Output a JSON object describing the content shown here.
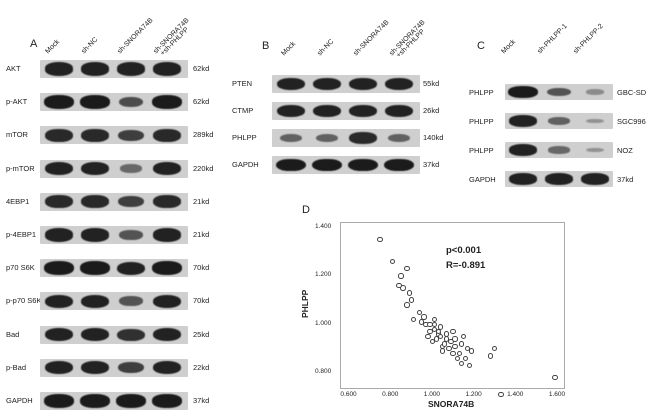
{
  "panel_a": {
    "letter": "A",
    "lanes": [
      "Mock",
      "sh-NC",
      "sh-SNORA74B",
      "sh-SNORA74B\n+sh-PHLPP"
    ],
    "rows": [
      {
        "label": "AKT",
        "kd": "62kd",
        "intensity": [
          0.9,
          0.9,
          0.9,
          0.9
        ]
      },
      {
        "label": "p-AKT",
        "kd": "62kd",
        "intensity": [
          0.95,
          0.95,
          0.6,
          0.95
        ]
      },
      {
        "label": "mTOR",
        "kd": "289kd",
        "intensity": [
          0.85,
          0.85,
          0.7,
          0.85
        ]
      },
      {
        "label": "p-mTOR",
        "kd": "220kd",
        "intensity": [
          0.9,
          0.9,
          0.4,
          0.9
        ]
      },
      {
        "label": "4EBP1",
        "kd": "21kd",
        "intensity": [
          0.85,
          0.85,
          0.7,
          0.85
        ]
      },
      {
        "label": "p-4EBP1",
        "kd": "21kd",
        "intensity": [
          0.9,
          0.9,
          0.55,
          0.9
        ]
      },
      {
        "label": "p70 S6K",
        "kd": "70kd",
        "intensity": [
          0.95,
          0.95,
          0.9,
          0.95
        ]
      },
      {
        "label": "p-p70 S6K",
        "kd": "70kd",
        "intensity": [
          0.9,
          0.9,
          0.55,
          0.9
        ]
      },
      {
        "label": "Bad",
        "kd": "25kd",
        "intensity": [
          0.9,
          0.9,
          0.8,
          0.9
        ]
      },
      {
        "label": "p-Bad",
        "kd": "22kd",
        "intensity": [
          0.9,
          0.9,
          0.7,
          0.9
        ]
      },
      {
        "label": "GAPDH",
        "kd": "37kd",
        "intensity": [
          0.95,
          0.95,
          0.95,
          0.95
        ]
      }
    ]
  },
  "panel_b": {
    "letter": "B",
    "lanes": [
      "Mock",
      "sh-NC",
      "sh-SNORA74B",
      "sh-SNORA74B\n+sh-PHLPP"
    ],
    "rows": [
      {
        "label": "PTEN",
        "kd": "55kd",
        "intensity": [
          0.9,
          0.9,
          0.9,
          0.9
        ]
      },
      {
        "label": "CTMP",
        "kd": "26kd",
        "intensity": [
          0.9,
          0.9,
          0.9,
          0.9
        ]
      },
      {
        "label": "PHLPP",
        "kd": "140kd",
        "intensity": [
          0.45,
          0.45,
          0.85,
          0.45
        ]
      },
      {
        "label": "GAPDH",
        "kd": "37kd",
        "intensity": [
          0.95,
          0.95,
          0.95,
          0.95
        ]
      }
    ]
  },
  "panel_c": {
    "letter": "C",
    "lanes": [
      "Mock",
      "sh-PHLPP-1",
      "sh-PHLPP-2"
    ],
    "rows": [
      {
        "label": "PHLPP",
        "kd": "GBC-SD",
        "intensity": [
          0.95,
          0.55,
          0.15
        ]
      },
      {
        "label": "PHLPP",
        "kd": "SGC996",
        "intensity": [
          0.9,
          0.45,
          0.1
        ]
      },
      {
        "label": "PHLPP",
        "kd": "NOZ",
        "intensity": [
          0.9,
          0.4,
          0.1
        ]
      },
      {
        "label": "GAPDH",
        "kd": "37kd",
        "intensity": [
          0.9,
          0.9,
          0.9
        ]
      }
    ]
  },
  "panel_d": {
    "letter": "D",
    "stats": {
      "p": "p<0.001",
      "r": "R=-0.891"
    }
  },
  "chart_data": {
    "type": "scatter",
    "xlabel": "SNORA74B",
    "ylabel": "PHLPP",
    "xlim": [
      0.55,
      1.62
    ],
    "ylim": [
      0.74,
      1.42
    ],
    "xticks": [
      "0.600",
      "0.800",
      "1.000",
      "1.200",
      "1.400",
      "1.600"
    ],
    "yticks": [
      "0.800",
      "1.000",
      "1.200",
      "1.400"
    ],
    "points": [
      [
        0.74,
        1.35
      ],
      [
        0.8,
        1.26
      ],
      [
        0.84,
        1.2
      ],
      [
        0.85,
        1.15
      ],
      [
        0.83,
        1.16
      ],
      [
        0.87,
        1.23
      ],
      [
        0.88,
        1.13
      ],
      [
        0.89,
        1.1
      ],
      [
        0.87,
        1.08
      ],
      [
        0.93,
        1.05
      ],
      [
        0.9,
        1.02
      ],
      [
        0.94,
        1.01
      ],
      [
        0.95,
        1.03
      ],
      [
        0.96,
        1.0
      ],
      [
        0.98,
        0.97
      ],
      [
        1.0,
        1.0
      ],
      [
        1.0,
        0.98
      ],
      [
        1.02,
        0.96
      ],
      [
        1.01,
        0.94
      ],
      [
        0.99,
        0.93
      ],
      [
        1.03,
        0.95
      ],
      [
        1.04,
        0.91
      ],
      [
        1.05,
        0.92
      ],
      [
        1.06,
        0.94
      ],
      [
        1.04,
        0.89
      ],
      [
        1.07,
        0.9
      ],
      [
        1.08,
        0.93
      ],
      [
        1.09,
        0.88
      ],
      [
        1.1,
        0.91
      ],
      [
        1.11,
        0.86
      ],
      [
        1.12,
        0.88
      ],
      [
        1.13,
        0.92
      ],
      [
        1.14,
        0.95
      ],
      [
        1.15,
        0.86
      ],
      [
        1.16,
        0.9
      ],
      [
        1.17,
        0.83
      ],
      [
        1.18,
        0.89
      ],
      [
        1.03,
        0.99
      ],
      [
        0.98,
        1.0
      ],
      [
        1.02,
        0.97
      ],
      [
        1.06,
        0.96
      ],
      [
        1.09,
        0.97
      ],
      [
        1.27,
        0.87
      ],
      [
        1.29,
        0.9
      ],
      [
        1.32,
        0.71
      ],
      [
        1.58,
        0.78
      ],
      [
        1.0,
        1.02
      ],
      [
        0.97,
        0.95
      ],
      [
        1.1,
        0.94
      ],
      [
        1.13,
        0.84
      ]
    ]
  }
}
